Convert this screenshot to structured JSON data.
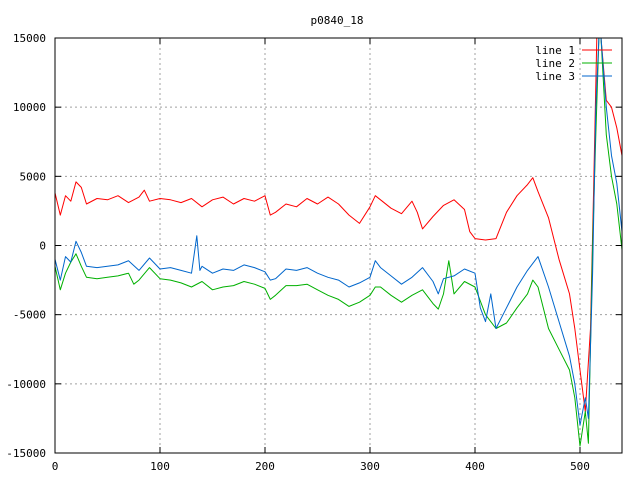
{
  "chart_data": {
    "type": "line",
    "title": "p0840_18",
    "xlabel": "",
    "ylabel": "",
    "xlim": [
      0,
      540
    ],
    "ylim": [
      -15000,
      15000
    ],
    "xticks": [
      0,
      100,
      200,
      300,
      400,
      500
    ],
    "yticks": [
      -15000,
      -10000,
      -5000,
      0,
      5000,
      10000,
      15000
    ],
    "grid": true,
    "legend_position": "top-right",
    "series": [
      {
        "name": "line 1",
        "color": "#ff0000",
        "points": [
          [
            0,
            3800
          ],
          [
            5,
            2200
          ],
          [
            10,
            3600
          ],
          [
            15,
            3200
          ],
          [
            20,
            4600
          ],
          [
            25,
            4200
          ],
          [
            30,
            3000
          ],
          [
            40,
            3400
          ],
          [
            50,
            3300
          ],
          [
            60,
            3600
          ],
          [
            70,
            3100
          ],
          [
            80,
            3500
          ],
          [
            85,
            4000
          ],
          [
            90,
            3200
          ],
          [
            100,
            3400
          ],
          [
            110,
            3300
          ],
          [
            120,
            3100
          ],
          [
            130,
            3400
          ],
          [
            140,
            2800
          ],
          [
            150,
            3300
          ],
          [
            160,
            3500
          ],
          [
            170,
            3000
          ],
          [
            180,
            3400
          ],
          [
            190,
            3200
          ],
          [
            200,
            3600
          ],
          [
            205,
            2200
          ],
          [
            210,
            2400
          ],
          [
            220,
            3000
          ],
          [
            230,
            2800
          ],
          [
            240,
            3400
          ],
          [
            250,
            3000
          ],
          [
            260,
            3500
          ],
          [
            270,
            3000
          ],
          [
            280,
            2200
          ],
          [
            290,
            1600
          ],
          [
            300,
            2800
          ],
          [
            305,
            3600
          ],
          [
            310,
            3300
          ],
          [
            320,
            2700
          ],
          [
            330,
            2300
          ],
          [
            340,
            3200
          ],
          [
            345,
            2400
          ],
          [
            350,
            1200
          ],
          [
            360,
            2100
          ],
          [
            370,
            2900
          ],
          [
            380,
            3300
          ],
          [
            390,
            2600
          ],
          [
            395,
            1000
          ],
          [
            400,
            500
          ],
          [
            410,
            400
          ],
          [
            420,
            500
          ],
          [
            430,
            2400
          ],
          [
            440,
            3600
          ],
          [
            450,
            4400
          ],
          [
            455,
            4900
          ],
          [
            460,
            3900
          ],
          [
            470,
            2000
          ],
          [
            480,
            -1000
          ],
          [
            490,
            -3500
          ],
          [
            495,
            -6000
          ],
          [
            500,
            -9000
          ],
          [
            505,
            -12000
          ],
          [
            510,
            -6000
          ],
          [
            513,
            4000
          ],
          [
            516,
            15000
          ],
          [
            520,
            15000
          ],
          [
            525,
            10500
          ],
          [
            530,
            10000
          ],
          [
            535,
            8500
          ],
          [
            540,
            6500
          ]
        ]
      },
      {
        "name": "line 2",
        "color": "#00b000",
        "points": [
          [
            0,
            -1500
          ],
          [
            5,
            -3200
          ],
          [
            10,
            -2000
          ],
          [
            15,
            -1200
          ],
          [
            20,
            -600
          ],
          [
            25,
            -1500
          ],
          [
            30,
            -2300
          ],
          [
            40,
            -2400
          ],
          [
            50,
            -2300
          ],
          [
            60,
            -2200
          ],
          [
            70,
            -2000
          ],
          [
            75,
            -2800
          ],
          [
            80,
            -2500
          ],
          [
            90,
            -1600
          ],
          [
            100,
            -2400
          ],
          [
            110,
            -2500
          ],
          [
            120,
            -2700
          ],
          [
            130,
            -3000
          ],
          [
            140,
            -2600
          ],
          [
            150,
            -3200
          ],
          [
            160,
            -3000
          ],
          [
            170,
            -2900
          ],
          [
            180,
            -2600
          ],
          [
            190,
            -2800
          ],
          [
            200,
            -3100
          ],
          [
            205,
            -3900
          ],
          [
            210,
            -3600
          ],
          [
            220,
            -2900
          ],
          [
            230,
            -2900
          ],
          [
            240,
            -2800
          ],
          [
            250,
            -3200
          ],
          [
            260,
            -3600
          ],
          [
            270,
            -3900
          ],
          [
            280,
            -4400
          ],
          [
            290,
            -4100
          ],
          [
            300,
            -3600
          ],
          [
            305,
            -3000
          ],
          [
            310,
            -3000
          ],
          [
            320,
            -3600
          ],
          [
            330,
            -4100
          ],
          [
            340,
            -3600
          ],
          [
            350,
            -3200
          ],
          [
            360,
            -4200
          ],
          [
            365,
            -4600
          ],
          [
            370,
            -3500
          ],
          [
            375,
            -1100
          ],
          [
            380,
            -3500
          ],
          [
            390,
            -2600
          ],
          [
            400,
            -3000
          ],
          [
            410,
            -5000
          ],
          [
            420,
            -6000
          ],
          [
            430,
            -5600
          ],
          [
            440,
            -4500
          ],
          [
            450,
            -3500
          ],
          [
            455,
            -2500
          ],
          [
            460,
            -3000
          ],
          [
            470,
            -6000
          ],
          [
            480,
            -7500
          ],
          [
            490,
            -9000
          ],
          [
            495,
            -11000
          ],
          [
            500,
            -14500
          ],
          [
            505,
            -12000
          ],
          [
            508,
            -14300
          ],
          [
            512,
            0
          ],
          [
            515,
            8000
          ],
          [
            518,
            15000
          ],
          [
            520,
            15000
          ],
          [
            525,
            8000
          ],
          [
            530,
            5000
          ],
          [
            535,
            3000
          ],
          [
            540,
            -300
          ]
        ]
      },
      {
        "name": "line 3",
        "color": "#0066cc",
        "points": [
          [
            0,
            -1000
          ],
          [
            5,
            -2500
          ],
          [
            10,
            -800
          ],
          [
            15,
            -1200
          ],
          [
            20,
            300
          ],
          [
            25,
            -500
          ],
          [
            30,
            -1500
          ],
          [
            40,
            -1600
          ],
          [
            50,
            -1500
          ],
          [
            60,
            -1400
          ],
          [
            70,
            -1100
          ],
          [
            80,
            -1800
          ],
          [
            90,
            -900
          ],
          [
            100,
            -1700
          ],
          [
            110,
            -1600
          ],
          [
            120,
            -1800
          ],
          [
            130,
            -2000
          ],
          [
            135,
            700
          ],
          [
            138,
            -1800
          ],
          [
            140,
            -1500
          ],
          [
            150,
            -2000
          ],
          [
            160,
            -1700
          ],
          [
            170,
            -1800
          ],
          [
            180,
            -1400
          ],
          [
            190,
            -1600
          ],
          [
            200,
            -1900
          ],
          [
            205,
            -2500
          ],
          [
            210,
            -2400
          ],
          [
            220,
            -1700
          ],
          [
            230,
            -1800
          ],
          [
            240,
            -1600
          ],
          [
            250,
            -2000
          ],
          [
            260,
            -2300
          ],
          [
            270,
            -2500
          ],
          [
            280,
            -3000
          ],
          [
            290,
            -2700
          ],
          [
            300,
            -2300
          ],
          [
            305,
            -1100
          ],
          [
            310,
            -1600
          ],
          [
            320,
            -2200
          ],
          [
            330,
            -2800
          ],
          [
            340,
            -2300
          ],
          [
            350,
            -1600
          ],
          [
            360,
            -2600
          ],
          [
            365,
            -3500
          ],
          [
            370,
            -2400
          ],
          [
            380,
            -2200
          ],
          [
            390,
            -1700
          ],
          [
            400,
            -2000
          ],
          [
            405,
            -4500
          ],
          [
            410,
            -5500
          ],
          [
            415,
            -3500
          ],
          [
            420,
            -6000
          ],
          [
            430,
            -4500
          ],
          [
            440,
            -3000
          ],
          [
            450,
            -1800
          ],
          [
            460,
            -800
          ],
          [
            470,
            -3000
          ],
          [
            480,
            -5500
          ],
          [
            490,
            -8000
          ],
          [
            495,
            -10000
          ],
          [
            500,
            -13000
          ],
          [
            505,
            -11000
          ],
          [
            508,
            -12500
          ],
          [
            512,
            -2000
          ],
          [
            515,
            10000
          ],
          [
            518,
            15000
          ],
          [
            520,
            15000
          ],
          [
            525,
            10000
          ],
          [
            530,
            6500
          ],
          [
            535,
            4500
          ],
          [
            540,
            1000
          ]
        ]
      }
    ]
  }
}
